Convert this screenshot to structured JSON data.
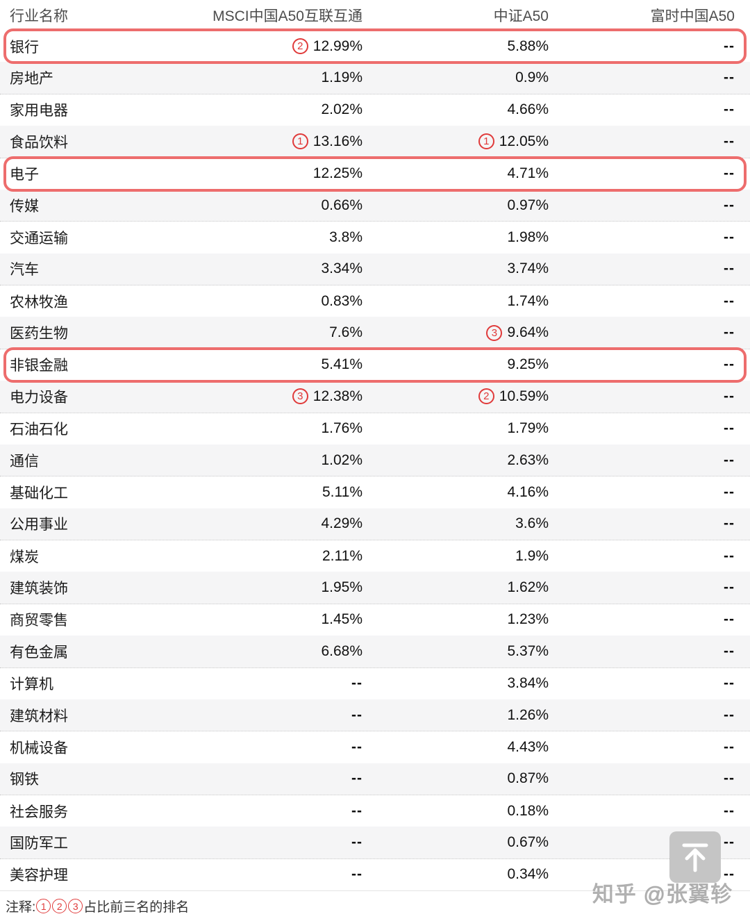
{
  "table": {
    "columns": [
      "行业名称",
      "MSCI中国A50互联互通",
      "中证A50",
      "富时中国A50"
    ],
    "rows": [
      {
        "industry": "银行",
        "msci": "12.99%",
        "msci_rank": "2",
        "csi": "5.88%",
        "csi_rank": "",
        "ftse": "--",
        "highlight": true
      },
      {
        "industry": "房地产",
        "msci": "1.19%",
        "msci_rank": "",
        "csi": "0.9%",
        "csi_rank": "",
        "ftse": "--",
        "highlight": false
      },
      {
        "industry": "家用电器",
        "msci": "2.02%",
        "msci_rank": "",
        "csi": "4.66%",
        "csi_rank": "",
        "ftse": "--",
        "highlight": false
      },
      {
        "industry": "食品饮料",
        "msci": "13.16%",
        "msci_rank": "1",
        "csi": "12.05%",
        "csi_rank": "1",
        "ftse": "--",
        "highlight": false
      },
      {
        "industry": "电子",
        "msci": "12.25%",
        "msci_rank": "",
        "csi": "4.71%",
        "csi_rank": "",
        "ftse": "--",
        "highlight": true
      },
      {
        "industry": "传媒",
        "msci": "0.66%",
        "msci_rank": "",
        "csi": "0.97%",
        "csi_rank": "",
        "ftse": "--",
        "highlight": false
      },
      {
        "industry": "交通运输",
        "msci": "3.8%",
        "msci_rank": "",
        "csi": "1.98%",
        "csi_rank": "",
        "ftse": "--",
        "highlight": false
      },
      {
        "industry": "汽车",
        "msci": "3.34%",
        "msci_rank": "",
        "csi": "3.74%",
        "csi_rank": "",
        "ftse": "--",
        "highlight": false
      },
      {
        "industry": "农林牧渔",
        "msci": "0.83%",
        "msci_rank": "",
        "csi": "1.74%",
        "csi_rank": "",
        "ftse": "--",
        "highlight": false
      },
      {
        "industry": "医药生物",
        "msci": "7.6%",
        "msci_rank": "",
        "csi": "9.64%",
        "csi_rank": "3",
        "ftse": "--",
        "highlight": false
      },
      {
        "industry": "非银金融",
        "msci": "5.41%",
        "msci_rank": "",
        "csi": "9.25%",
        "csi_rank": "",
        "ftse": "--",
        "highlight": true
      },
      {
        "industry": "电力设备",
        "msci": "12.38%",
        "msci_rank": "3",
        "csi": "10.59%",
        "csi_rank": "2",
        "ftse": "--",
        "highlight": false
      },
      {
        "industry": "石油石化",
        "msci": "1.76%",
        "msci_rank": "",
        "csi": "1.79%",
        "csi_rank": "",
        "ftse": "--",
        "highlight": false
      },
      {
        "industry": "通信",
        "msci": "1.02%",
        "msci_rank": "",
        "csi": "2.63%",
        "csi_rank": "",
        "ftse": "--",
        "highlight": false
      },
      {
        "industry": "基础化工",
        "msci": "5.11%",
        "msci_rank": "",
        "csi": "4.16%",
        "csi_rank": "",
        "ftse": "--",
        "highlight": false
      },
      {
        "industry": "公用事业",
        "msci": "4.29%",
        "msci_rank": "",
        "csi": "3.6%",
        "csi_rank": "",
        "ftse": "--",
        "highlight": false
      },
      {
        "industry": "煤炭",
        "msci": "2.11%",
        "msci_rank": "",
        "csi": "1.9%",
        "csi_rank": "",
        "ftse": "--",
        "highlight": false
      },
      {
        "industry": "建筑装饰",
        "msci": "1.95%",
        "msci_rank": "",
        "csi": "1.62%",
        "csi_rank": "",
        "ftse": "--",
        "highlight": false
      },
      {
        "industry": "商贸零售",
        "msci": "1.45%",
        "msci_rank": "",
        "csi": "1.23%",
        "csi_rank": "",
        "ftse": "--",
        "highlight": false
      },
      {
        "industry": "有色金属",
        "msci": "6.68%",
        "msci_rank": "",
        "csi": "5.37%",
        "csi_rank": "",
        "ftse": "--",
        "highlight": false
      },
      {
        "industry": "计算机",
        "msci": "--",
        "msci_rank": "",
        "csi": "3.84%",
        "csi_rank": "",
        "ftse": "--",
        "highlight": false
      },
      {
        "industry": "建筑材料",
        "msci": "--",
        "msci_rank": "",
        "csi": "1.26%",
        "csi_rank": "",
        "ftse": "--",
        "highlight": false
      },
      {
        "industry": "机械设备",
        "msci": "--",
        "msci_rank": "",
        "csi": "4.43%",
        "csi_rank": "",
        "ftse": "--",
        "highlight": false
      },
      {
        "industry": "钢铁",
        "msci": "--",
        "msci_rank": "",
        "csi": "0.87%",
        "csi_rank": "",
        "ftse": "--",
        "highlight": false
      },
      {
        "industry": "社会服务",
        "msci": "--",
        "msci_rank": "",
        "csi": "0.18%",
        "csi_rank": "",
        "ftse": "--",
        "highlight": false
      },
      {
        "industry": "国防军工",
        "msci": "--",
        "msci_rank": "",
        "csi": "0.67%",
        "csi_rank": "",
        "ftse": "--",
        "highlight": false
      },
      {
        "industry": "美容护理",
        "msci": "--",
        "msci_rank": "",
        "csi": "0.34%",
        "csi_rank": "",
        "ftse": "--",
        "highlight": false
      }
    ]
  },
  "note": {
    "prefix": "注释:",
    "rank_badges": [
      "1",
      "2",
      "3"
    ],
    "suffix": "占比前三名的排名"
  },
  "watermark": "知乎 @张翼轸",
  "colors": {
    "highlight_border": "#ed6d6d",
    "rank_red": "#e03a3a",
    "stripe_gray": "#f5f5f6"
  },
  "chart_data": {
    "type": "table",
    "title": "",
    "columns": [
      "行业名称",
      "MSCI中国A50互联互通",
      "中证A50",
      "富时中国A50"
    ],
    "rows": [
      [
        "银行",
        "12.99%",
        "5.88%",
        "--"
      ],
      [
        "房地产",
        "1.19%",
        "0.9%",
        "--"
      ],
      [
        "家用电器",
        "2.02%",
        "4.66%",
        "--"
      ],
      [
        "食品饮料",
        "13.16%",
        "12.05%",
        "--"
      ],
      [
        "电子",
        "12.25%",
        "4.71%",
        "--"
      ],
      [
        "传媒",
        "0.66%",
        "0.97%",
        "--"
      ],
      [
        "交通运输",
        "3.8%",
        "1.98%",
        "--"
      ],
      [
        "汽车",
        "3.34%",
        "3.74%",
        "--"
      ],
      [
        "农林牧渔",
        "0.83%",
        "1.74%",
        "--"
      ],
      [
        "医药生物",
        "7.6%",
        "9.64%",
        "--"
      ],
      [
        "非银金融",
        "5.41%",
        "9.25%",
        "--"
      ],
      [
        "电力设备",
        "12.38%",
        "10.59%",
        "--"
      ],
      [
        "石油石化",
        "1.76%",
        "1.79%",
        "--"
      ],
      [
        "通信",
        "1.02%",
        "2.63%",
        "--"
      ],
      [
        "基础化工",
        "5.11%",
        "4.16%",
        "--"
      ],
      [
        "公用事业",
        "4.29%",
        "3.6%",
        "--"
      ],
      [
        "煤炭",
        "2.11%",
        "1.9%",
        "--"
      ],
      [
        "建筑装饰",
        "1.95%",
        "1.62%",
        "--"
      ],
      [
        "商贸零售",
        "1.45%",
        "1.23%",
        "--"
      ],
      [
        "有色金属",
        "6.68%",
        "5.37%",
        "--"
      ],
      [
        "计算机",
        "--",
        "3.84%",
        "--"
      ],
      [
        "建筑材料",
        "--",
        "1.26%",
        "--"
      ],
      [
        "机械设备",
        "--",
        "4.43%",
        "--"
      ],
      [
        "钢铁",
        "--",
        "0.87%",
        "--"
      ],
      [
        "社会服务",
        "--",
        "0.18%",
        "--"
      ],
      [
        "国防军工",
        "--",
        "0.67%",
        "--"
      ],
      [
        "美容护理",
        "--",
        "0.34%",
        "--"
      ]
    ],
    "rank_annotations": {
      "MSCI中国A50互联互通": {
        "1": "食品饮料",
        "2": "银行",
        "3": "电力设备"
      },
      "中证A50": {
        "1": "食品饮料",
        "2": "电力设备",
        "3": "医药生物"
      }
    },
    "highlighted_rows": [
      "银行",
      "电子",
      "非银金融"
    ]
  }
}
